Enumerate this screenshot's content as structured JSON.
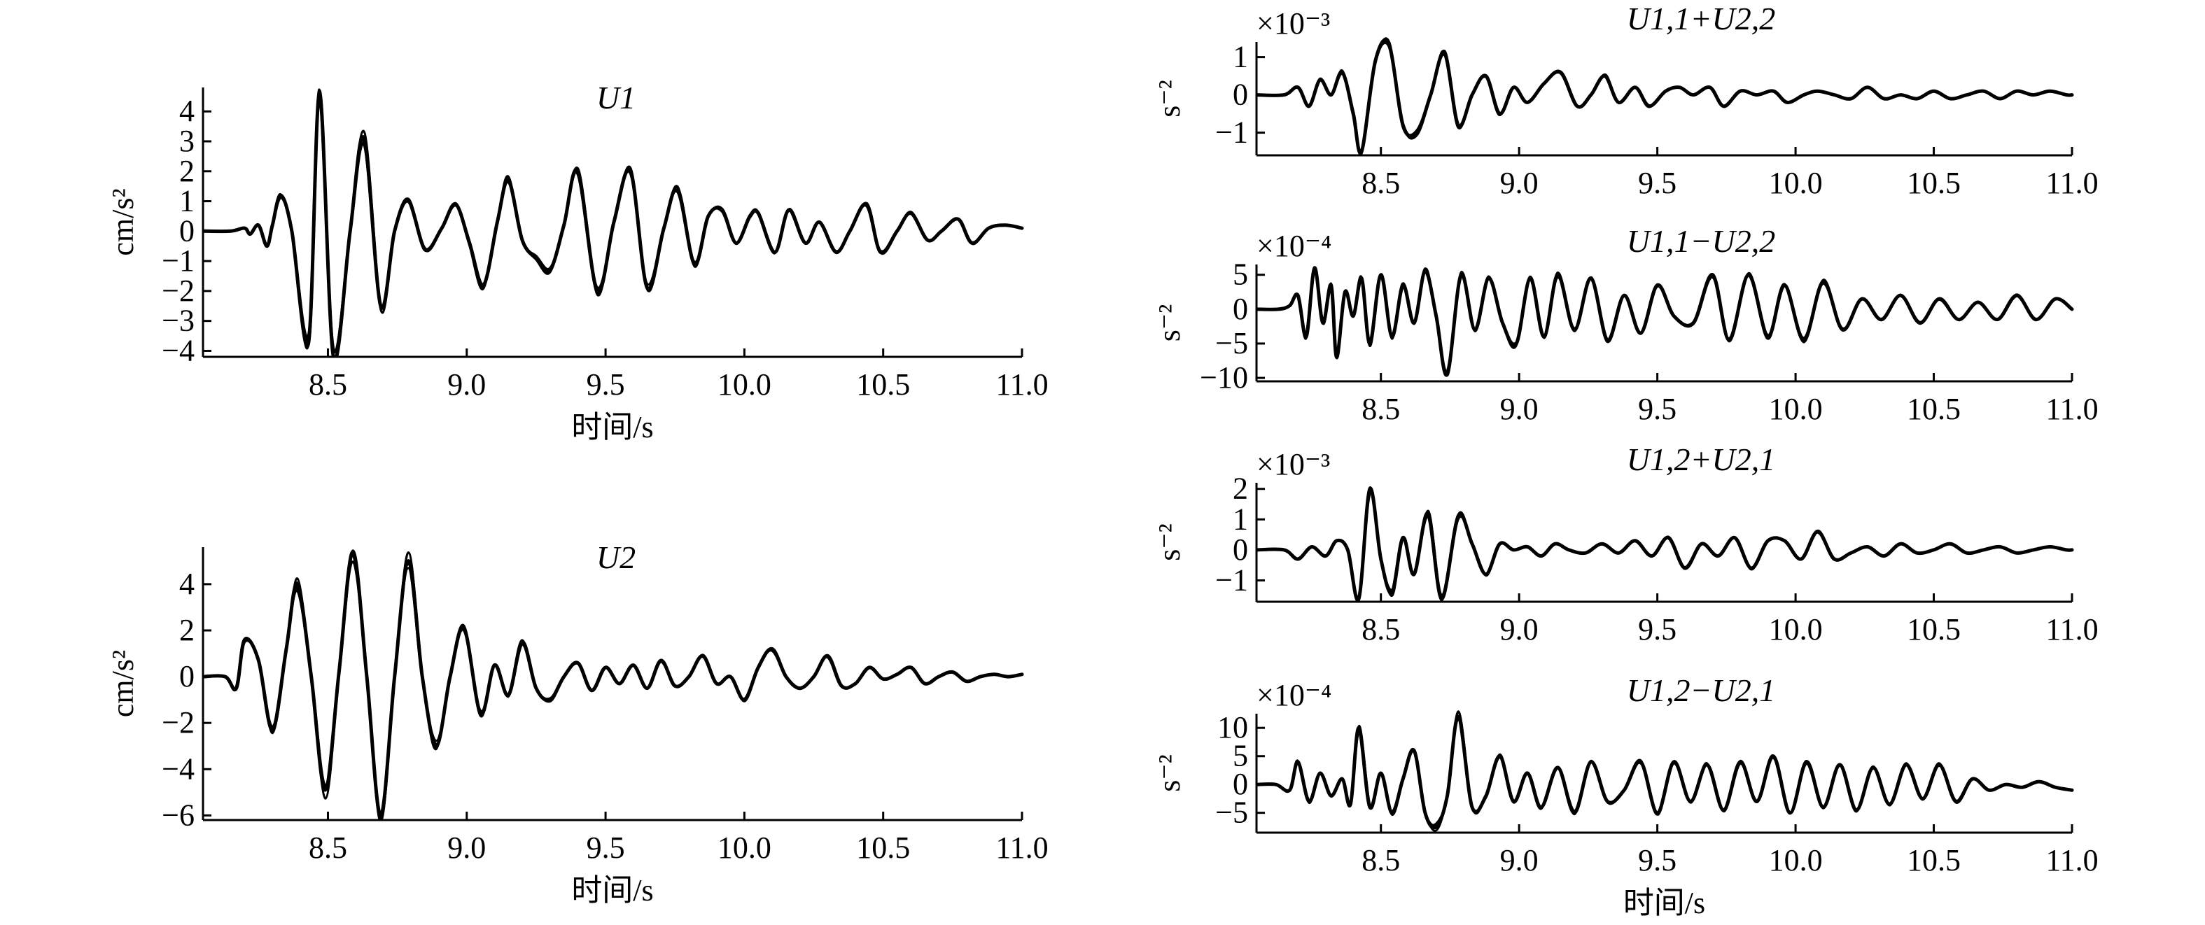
{
  "chart_data": [
    {
      "type": "line",
      "title": "U1",
      "ylabel": "cm/s²",
      "xlabel": "时间/s",
      "xlim": [
        8.05,
        11.0
      ],
      "ylim": [
        -4.2,
        4.8
      ],
      "x_ticks": [
        "8.5",
        "9.0",
        "9.5",
        "10.0",
        "10.5",
        "11.0"
      ],
      "x_tick_values": [
        8.5,
        9.0,
        9.5,
        10.0,
        10.5,
        11.0
      ],
      "y_ticks": [
        "4",
        "3",
        "2",
        "1",
        "0",
        "−1",
        "−2",
        "−3",
        "−4"
      ],
      "y_tick_values": [
        4,
        3,
        2,
        1,
        0,
        -1,
        -2,
        -3,
        -4
      ],
      "series_count": 6,
      "series": [
        {
          "x": [
            8.05,
            8.15,
            8.2,
            8.22,
            8.25,
            8.28,
            8.3,
            8.33,
            8.37,
            8.43,
            8.47,
            8.52,
            8.58,
            8.63,
            8.69,
            8.74,
            8.79,
            8.85,
            8.91,
            8.96,
            9.01,
            9.06,
            9.11,
            9.15,
            9.2,
            9.25,
            9.3,
            9.35,
            9.4,
            9.47,
            9.53,
            9.59,
            9.65,
            9.71,
            9.76,
            9.82,
            9.87,
            9.92,
            9.97,
            10.02,
            10.05,
            10.11,
            10.16,
            10.22,
            10.27,
            10.33,
            10.38,
            10.44,
            10.49,
            10.55,
            10.6,
            10.66,
            10.71,
            10.77,
            10.82,
            10.88,
            10.94,
            11.0
          ],
          "y": [
            0,
            0,
            0.1,
            -0.1,
            0.2,
            -0.5,
            0.2,
            1.2,
            0,
            -3.7,
            4.6,
            -4.2,
            0,
            3.1,
            -2.5,
            0,
            1.0,
            -0.6,
            0.1,
            0.9,
            -0.4,
            -1.8,
            0.3,
            1.7,
            -0.3,
            -0.9,
            -1.3,
            0.2,
            2.0,
            -2.0,
            0.3,
            2.0,
            -1.9,
            0.1,
            1.4,
            -1.1,
            0.5,
            0.7,
            -0.4,
            0.5,
            0.6,
            -0.7,
            0.7,
            -0.4,
            0.3,
            -0.7,
            0,
            0.9,
            -0.7,
            0,
            0.6,
            -0.3,
            0,
            0.4,
            -0.4,
            0.1,
            0.2,
            0.1
          ]
        }
      ]
    },
    {
      "type": "line",
      "title": "U2",
      "ylabel": "cm/s²",
      "xlabel": "时间/s",
      "xlim": [
        8.05,
        11.0
      ],
      "ylim": [
        -6.2,
        5.6
      ],
      "x_ticks": [
        "8.5",
        "9.0",
        "9.5",
        "10.0",
        "10.5",
        "11.0"
      ],
      "x_tick_values": [
        8.5,
        9.0,
        9.5,
        10.0,
        10.5,
        11.0
      ],
      "y_ticks": [
        "4",
        "2",
        "0",
        "−2",
        "−4",
        "−6"
      ],
      "y_tick_values": [
        4,
        2,
        0,
        -2,
        -4,
        -6
      ],
      "series_count": 6,
      "series": [
        {
          "x": [
            8.05,
            8.13,
            8.17,
            8.2,
            8.25,
            8.3,
            8.35,
            8.39,
            8.44,
            8.49,
            8.54,
            8.59,
            8.64,
            8.69,
            8.74,
            8.79,
            8.84,
            8.89,
            8.94,
            8.99,
            9.05,
            9.1,
            9.15,
            9.2,
            9.25,
            9.3,
            9.35,
            9.4,
            9.45,
            9.5,
            9.55,
            9.6,
            9.65,
            9.7,
            9.75,
            9.8,
            9.85,
            9.9,
            9.95,
            10.0,
            10.05,
            10.1,
            10.15,
            10.2,
            10.25,
            10.3,
            10.35,
            10.4,
            10.45,
            10.5,
            10.55,
            10.6,
            10.65,
            10.7,
            10.75,
            10.8,
            10.85,
            10.9,
            10.95,
            11.0
          ],
          "y": [
            0,
            0,
            -0.5,
            1.6,
            0.7,
            -2.3,
            1.2,
            4.0,
            0,
            -4.9,
            0.2,
            5.4,
            0,
            -6.0,
            0,
            5.0,
            0,
            -3.0,
            0,
            2.1,
            -1.6,
            0.5,
            -0.8,
            1.5,
            -0.5,
            -1.0,
            0,
            0.6,
            -0.6,
            0.4,
            -0.3,
            0.5,
            -0.5,
            0.7,
            -0.4,
            0,
            0.9,
            -0.3,
            0,
            -1.0,
            0.4,
            1.2,
            0,
            -0.5,
            0,
            0.9,
            -0.4,
            -0.3,
            0.4,
            -0.1,
            0.1,
            0.4,
            -0.3,
            0,
            0.2,
            -0.2,
            0,
            0.1,
            0,
            0.1
          ]
        }
      ]
    },
    {
      "type": "line",
      "title": "U1,1+U2,2",
      "ylabel": "s⁻²",
      "scale_label": "×10⁻³",
      "xlim": [
        8.05,
        11.0
      ],
      "ylim": [
        -1.6,
        1.4
      ],
      "x_ticks": [
        "8.5",
        "9.0",
        "9.5",
        "10.0",
        "10.5",
        "11.0"
      ],
      "x_tick_values": [
        8.5,
        9.0,
        9.5,
        10.0,
        10.5,
        11.0
      ],
      "y_ticks": [
        "1",
        "0",
        "−1"
      ],
      "y_tick_values": [
        1,
        0,
        -1
      ],
      "series_count": 5,
      "series": [
        {
          "x": [
            8.05,
            8.15,
            8.2,
            8.24,
            8.28,
            8.32,
            8.36,
            8.4,
            8.43,
            8.48,
            8.53,
            8.58,
            8.63,
            8.68,
            8.73,
            8.78,
            8.83,
            8.88,
            8.93,
            8.98,
            9.03,
            9.09,
            9.15,
            9.21,
            9.26,
            9.31,
            9.36,
            9.42,
            9.47,
            9.53,
            9.58,
            9.63,
            9.69,
            9.74,
            9.8,
            9.86,
            9.92,
            9.97,
            10.03,
            10.08,
            10.14,
            10.2,
            10.26,
            10.32,
            10.38,
            10.44,
            10.5,
            10.56,
            10.62,
            10.68,
            10.74,
            10.8,
            10.86,
            10.92,
            10.98,
            11.0
          ],
          "y": [
            0,
            0,
            0.2,
            -0.3,
            0.4,
            0,
            0.6,
            -0.5,
            -1.5,
            0.9,
            1.3,
            -0.8,
            -1.0,
            0,
            1.1,
            -0.8,
            0,
            0.5,
            -0.5,
            0.2,
            -0.2,
            0.3,
            0.6,
            -0.3,
            0,
            0.5,
            -0.2,
            0.2,
            -0.3,
            0.1,
            0.2,
            0,
            0.2,
            -0.3,
            0.1,
            0,
            0.1,
            -0.2,
            0,
            0.1,
            0,
            -0.1,
            0.2,
            -0.1,
            0,
            -0.1,
            0.1,
            -0.1,
            0,
            0.1,
            -0.1,
            0.1,
            0,
            0.1,
            0,
            0
          ]
        }
      ]
    },
    {
      "type": "line",
      "title": "U1,1−U2,2",
      "ylabel": "s⁻²",
      "scale_label": "×10⁻⁴",
      "xlim": [
        8.05,
        11.0
      ],
      "ylim": [
        -10.5,
        6.5
      ],
      "x_ticks": [
        "8.5",
        "9.0",
        "9.5",
        "10.0",
        "10.5",
        "11.0"
      ],
      "x_tick_values": [
        8.5,
        9.0,
        9.5,
        10.0,
        10.5,
        11.0
      ],
      "y_ticks": [
        "5",
        "0",
        "−5",
        "−10"
      ],
      "y_tick_values": [
        5,
        0,
        -5,
        -10
      ],
      "series_count": 5,
      "series": [
        {
          "x": [
            8.05,
            8.13,
            8.17,
            8.2,
            8.23,
            8.26,
            8.29,
            8.32,
            8.34,
            8.37,
            8.4,
            8.43,
            8.46,
            8.5,
            8.54,
            8.58,
            8.62,
            8.66,
            8.7,
            8.74,
            8.79,
            8.84,
            8.89,
            8.94,
            8.99,
            9.04,
            9.09,
            9.14,
            9.2,
            9.26,
            9.32,
            9.38,
            9.44,
            9.5,
            9.56,
            9.63,
            9.7,
            9.76,
            9.83,
            9.9,
            9.96,
            10.03,
            10.1,
            10.17,
            10.24,
            10.31,
            10.38,
            10.45,
            10.52,
            10.59,
            10.66,
            10.73,
            10.8,
            10.87,
            10.94,
            11.0
          ],
          "y": [
            0,
            0,
            0.5,
            2.0,
            -4.0,
            6.0,
            -2.0,
            3.5,
            -7.0,
            2.5,
            -1.0,
            4.5,
            -5.0,
            5.0,
            -4.0,
            3.5,
            -2.0,
            5.5,
            -1.0,
            -9.5,
            5.0,
            -3.0,
            4.5,
            -2.0,
            -5.0,
            4.5,
            -4.0,
            5.0,
            -3.0,
            4.5,
            -4.5,
            2.0,
            -3.5,
            3.5,
            -1.0,
            -2.0,
            5.0,
            -4.5,
            5.0,
            -4.0,
            3.5,
            -4.5,
            4.0,
            -3.0,
            1.5,
            -1.5,
            2.0,
            -2.0,
            1.5,
            -1.5,
            1.0,
            -1.5,
            2.0,
            -1.5,
            1.5,
            0
          ]
        }
      ]
    },
    {
      "type": "line",
      "title": "U1,2+U2,1",
      "ylabel": "s⁻²",
      "scale_label": "×10⁻³",
      "xlim": [
        8.05,
        11.0
      ],
      "ylim": [
        -1.7,
        2.2
      ],
      "x_ticks": [
        "8.5",
        "9.0",
        "9.5",
        "10.0",
        "10.5",
        "11.0"
      ],
      "x_tick_values": [
        8.5,
        9.0,
        9.5,
        10.0,
        10.5,
        11.0
      ],
      "y_ticks": [
        "2",
        "1",
        "0",
        "−1"
      ],
      "y_tick_values": [
        2,
        1,
        0,
        -1
      ],
      "series_count": 5,
      "series": [
        {
          "x": [
            8.05,
            8.15,
            8.2,
            8.25,
            8.3,
            8.34,
            8.38,
            8.42,
            8.46,
            8.5,
            8.54,
            8.58,
            8.62,
            8.67,
            8.72,
            8.78,
            8.83,
            8.88,
            8.93,
            8.98,
            9.03,
            9.08,
            9.13,
            9.18,
            9.24,
            9.3,
            9.36,
            9.42,
            9.48,
            9.54,
            9.6,
            9.66,
            9.72,
            9.78,
            9.84,
            9.9,
            9.96,
            10.02,
            10.08,
            10.14,
            10.2,
            10.26,
            10.32,
            10.38,
            10.44,
            10.5,
            10.56,
            10.62,
            10.68,
            10.74,
            10.8,
            10.86,
            10.92,
            10.98,
            11.0
          ],
          "y": [
            0,
            0,
            -0.3,
            0.1,
            -0.2,
            0.3,
            0,
            -1.6,
            2.0,
            -0.3,
            -1.4,
            0.4,
            -0.8,
            1.2,
            -1.6,
            1.1,
            0.2,
            -0.8,
            0.2,
            0,
            0.1,
            -0.2,
            0.2,
            0,
            -0.1,
            0.2,
            -0.1,
            0.3,
            -0.2,
            0.4,
            -0.6,
            0.2,
            -0.2,
            0.4,
            -0.6,
            0.3,
            0.3,
            -0.3,
            0.6,
            -0.3,
            -0.1,
            0.1,
            -0.2,
            0.2,
            -0.1,
            0,
            0.2,
            -0.1,
            0,
            0.1,
            -0.1,
            0,
            0.1,
            0,
            0
          ]
        }
      ]
    },
    {
      "type": "line",
      "title": "U1,2−U2,1",
      "ylabel": "s⁻²",
      "scale_label": "×10⁻⁴",
      "xlabel": "时间/s",
      "xlim": [
        8.05,
        11.0
      ],
      "ylim": [
        -8.5,
        12.5
      ],
      "x_ticks": [
        "8.5",
        "9.0",
        "9.5",
        "10.0",
        "10.5",
        "11.0"
      ],
      "x_tick_values": [
        8.5,
        9.0,
        9.5,
        10.0,
        10.5,
        11.0
      ],
      "y_ticks": [
        "10",
        "5",
        "0",
        "−5"
      ],
      "y_tick_values": [
        10,
        5,
        0,
        -5
      ],
      "series_count": 5,
      "series": [
        {
          "x": [
            8.05,
            8.12,
            8.17,
            8.2,
            8.24,
            8.28,
            8.32,
            8.36,
            8.39,
            8.42,
            8.46,
            8.5,
            8.54,
            8.58,
            8.62,
            8.66,
            8.7,
            8.74,
            8.78,
            8.83,
            8.88,
            8.93,
            8.98,
            9.03,
            9.08,
            9.14,
            9.2,
            9.26,
            9.32,
            9.38,
            9.44,
            9.5,
            9.56,
            9.62,
            9.68,
            9.74,
            9.8,
            9.86,
            9.92,
            9.98,
            10.04,
            10.1,
            10.16,
            10.22,
            10.28,
            10.34,
            10.4,
            10.46,
            10.52,
            10.58,
            10.64,
            10.7,
            10.76,
            10.82,
            10.88,
            10.94,
            11.0
          ],
          "y": [
            0,
            0,
            -1.0,
            4.0,
            -3.0,
            2.0,
            -2.0,
            1.0,
            -3.5,
            10.0,
            -4.0,
            2.0,
            -5.0,
            1.0,
            6.0,
            -5.0,
            -7.5,
            -2.0,
            12.0,
            -4.0,
            -2.0,
            5.0,
            -3.0,
            2.0,
            -4.0,
            3.0,
            -5.0,
            4.0,
            -3.0,
            -1.0,
            4.0,
            -5.0,
            4.0,
            -3.0,
            3.5,
            -4.5,
            4.0,
            -3.0,
            5.0,
            -5.0,
            4.0,
            -4.0,
            3.5,
            -4.5,
            3.0,
            -3.5,
            3.5,
            -2.5,
            3.5,
            -3.0,
            1.0,
            -1.0,
            0,
            -0.5,
            0.5,
            -0.5,
            -1.0
          ]
        }
      ]
    }
  ]
}
